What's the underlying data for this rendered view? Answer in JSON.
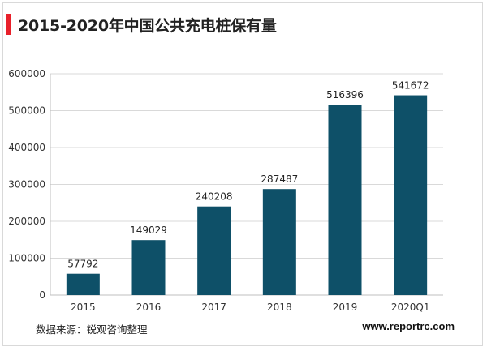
{
  "header": {
    "title": "2015-2020年中国公共充电桩保有量",
    "accent_color": "#e8202a"
  },
  "chart_data": {
    "type": "bar",
    "title": "2015-2020年中国公共充电桩保有量",
    "xlabel": "",
    "ylabel": "",
    "categories": [
      "2015",
      "2016",
      "2017",
      "2018",
      "2019",
      "2020Q1"
    ],
    "values": [
      57792,
      149029,
      240208,
      287487,
      516396,
      541672
    ],
    "data_labels": [
      "57792",
      "149029",
      "240208",
      "287487",
      "516396",
      "541672"
    ],
    "ylim": [
      0,
      600000
    ],
    "yticks": [
      0,
      100000,
      200000,
      300000,
      400000,
      500000,
      600000
    ],
    "ytick_labels": [
      "0",
      "100000",
      "200000",
      "300000",
      "400000",
      "500000",
      "600000"
    ],
    "bar_color": "#0e5068",
    "grid": true,
    "grid_color": "#d9d9d9",
    "legend": "none"
  },
  "footer": {
    "source": "数据来源：锐观咨询整理",
    "website": "www.reportrc.com"
  }
}
